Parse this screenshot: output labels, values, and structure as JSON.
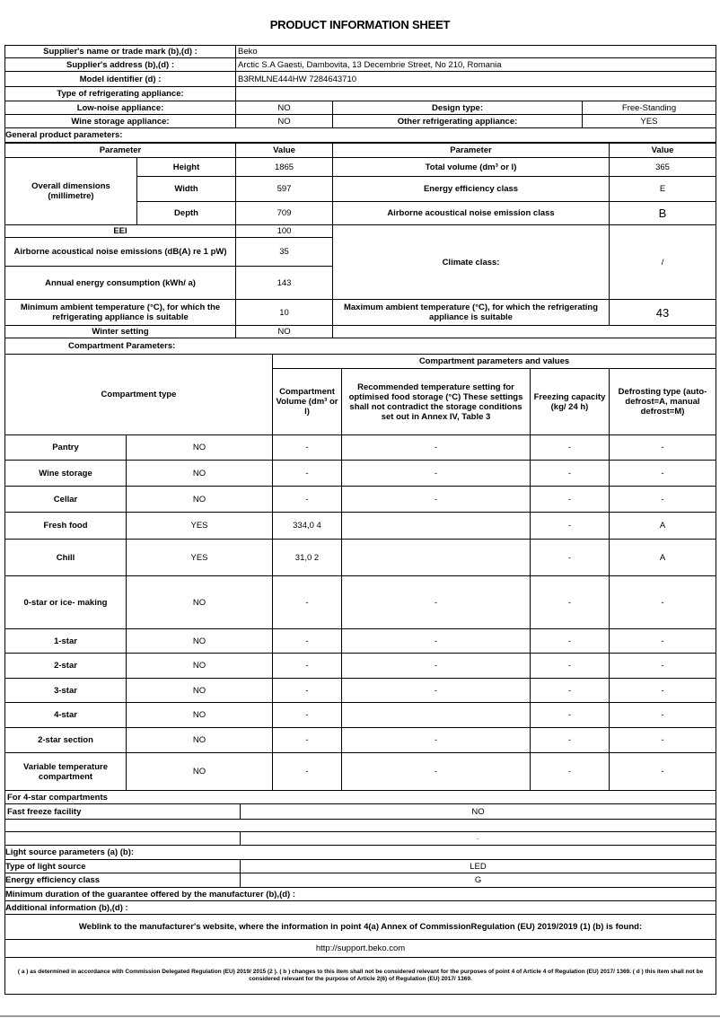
{
  "title": "PRODUCT INFORMATION SHEET",
  "supplier": {
    "name_label": "Supplier's name or trade mark (b),(d) :",
    "name": "Beko",
    "address_label": "Supplier's address (b),(d) :",
    "address": "Arctic S.A  Gaesti, Dambovita, 13 Decembrie Street, No 210, Romania",
    "model_label": "Model identifier (d) :",
    "model": "B3RMLNE444HW 7284643710",
    "type_label": "Type of refrigerating appliance:",
    "low_noise_label": "Low-noise appliance:",
    "low_noise": "NO",
    "design_label": "Design type:",
    "design": "Free-Standing",
    "wine_label": "Wine storage appliance:",
    "wine": "NO",
    "other_label": "Other refrigerating appliance:",
    "other": "YES"
  },
  "general": {
    "heading": "General product parameters:",
    "param_header": "Parameter",
    "value_header": "Value",
    "dims_label": "Overall dimensions (millimetre)",
    "height_label": "Height",
    "height": "1865",
    "width_label": "Width",
    "width": "597",
    "depth_label": "Depth",
    "depth": "709",
    "total_volume_label": "Total volume (dm³ or l)",
    "total_volume": "365",
    "eec_label": "Energy efficiency class",
    "eec": "E",
    "noise_class_label": "Airborne acoustical noise emission class",
    "noise_class": "B",
    "eei_label": "EEI",
    "eei": "100",
    "noise_label": "Airborne acoustical noise emissions (dB(A) re 1 pW)",
    "noise": "35",
    "annual_label": "Annual energy consumption (kWh/ a)",
    "annual": "143",
    "climate_label": "Climate class:",
    "climate": "/",
    "min_temp_label": "Minimum ambient temperature (°C), for which the refrigerating appliance is suitable",
    "min_temp": "10",
    "max_temp_label": "Maximum ambient temperature (°C), for which the refrigerating appliance is suitable",
    "max_temp": "43",
    "winter_label": "Winter setting",
    "winter": "NO",
    "compartment_heading": "Compartment Parameters:"
  },
  "compartments": {
    "type_header": "Compartment type",
    "group_header": "Compartment parameters and values",
    "volume_header": "Compartment Volume (dm³ or l)",
    "temp_header": "Recommended temperature setting for optimised food storage (°C) These settings shall not contradict the storage conditions set out in Annex IV, Table 3",
    "freezing_header": "Freezing capacity (kg/ 24 h)",
    "defrost_header": "Defrosting type (auto-defrost=A, manual defrost=M)",
    "rows": [
      {
        "name": "Pantry",
        "present": "NO",
        "volume": "-",
        "temp": "-",
        "freezing": "-",
        "defrost": "-"
      },
      {
        "name": "Wine storage",
        "present": "NO",
        "volume": "-",
        "temp": "-",
        "freezing": "-",
        "defrost": "-"
      },
      {
        "name": "Cellar",
        "present": "NO",
        "volume": "-",
        "temp": "-",
        "freezing": "-",
        "defrost": "-"
      },
      {
        "name": "Fresh food",
        "present": "YES",
        "volume": "334,0 4",
        "temp": "",
        "freezing": "-",
        "defrost": "A"
      },
      {
        "name": "Chill",
        "present": "YES",
        "volume": "31,0 2",
        "temp": "",
        "freezing": "-",
        "defrost": "A"
      },
      {
        "name": "0-star or ice- making",
        "present": "NO",
        "volume": "-",
        "temp": "-",
        "freezing": "-",
        "defrost": "-"
      },
      {
        "name": "1-star",
        "present": "NO",
        "volume": "-",
        "temp": "-",
        "freezing": "-",
        "defrost": "-"
      },
      {
        "name": "2-star",
        "present": "NO",
        "volume": "-",
        "temp": "-",
        "freezing": "-",
        "defrost": "-"
      },
      {
        "name": "3-star",
        "present": "NO",
        "volume": "-",
        "temp": "-",
        "freezing": "-",
        "defrost": "-"
      },
      {
        "name": "4-star",
        "present": "NO",
        "volume": "-",
        "temp": "",
        "freezing": "-",
        "defrost": "-"
      },
      {
        "name": "2-star section",
        "present": "NO",
        "volume": "-",
        "temp": "-",
        "freezing": "-",
        "defrost": "-"
      },
      {
        "name": "Variable temperature compartment",
        "present": "NO",
        "volume": "-",
        "temp": "-",
        "freezing": "-",
        "defrost": "-"
      }
    ]
  },
  "four_star": {
    "heading": "For 4-star compartments",
    "fast_freeze_label": "Fast freeze facility",
    "fast_freeze": "NO",
    "blank_value": "-"
  },
  "light": {
    "heading": "Light source parameters (a) (b):",
    "type_label": "Type of light source",
    "type": "LED",
    "eec_label": "Energy efficiency class",
    "eec": "G"
  },
  "guarantee_label": "Minimum duration of the guarantee offered by the manufacturer (b),(d) :",
  "additional_label": "Additional information (b),(d) :",
  "weblink_label": "Weblink to the manufacturer's website, where the information in point 4(a) Annex of CommissionRegulation (EU) 2019/2019 (1) (b) is found:",
  "weblink": "http://support.beko.com",
  "footnote": "( a ) as determined in accordance with Commission Delegated Regulation (EU) 2019/ 2015 (2 ). ( b ) changes to this item shall not be considered relevant for the purposes of point 4 of Article 4 of Regulation (EU) 2017/ 1369. ( d ) this item shall not be considered relevant for the purpose of Article 2(6) of Regulation (EU) 2017/ 1369."
}
